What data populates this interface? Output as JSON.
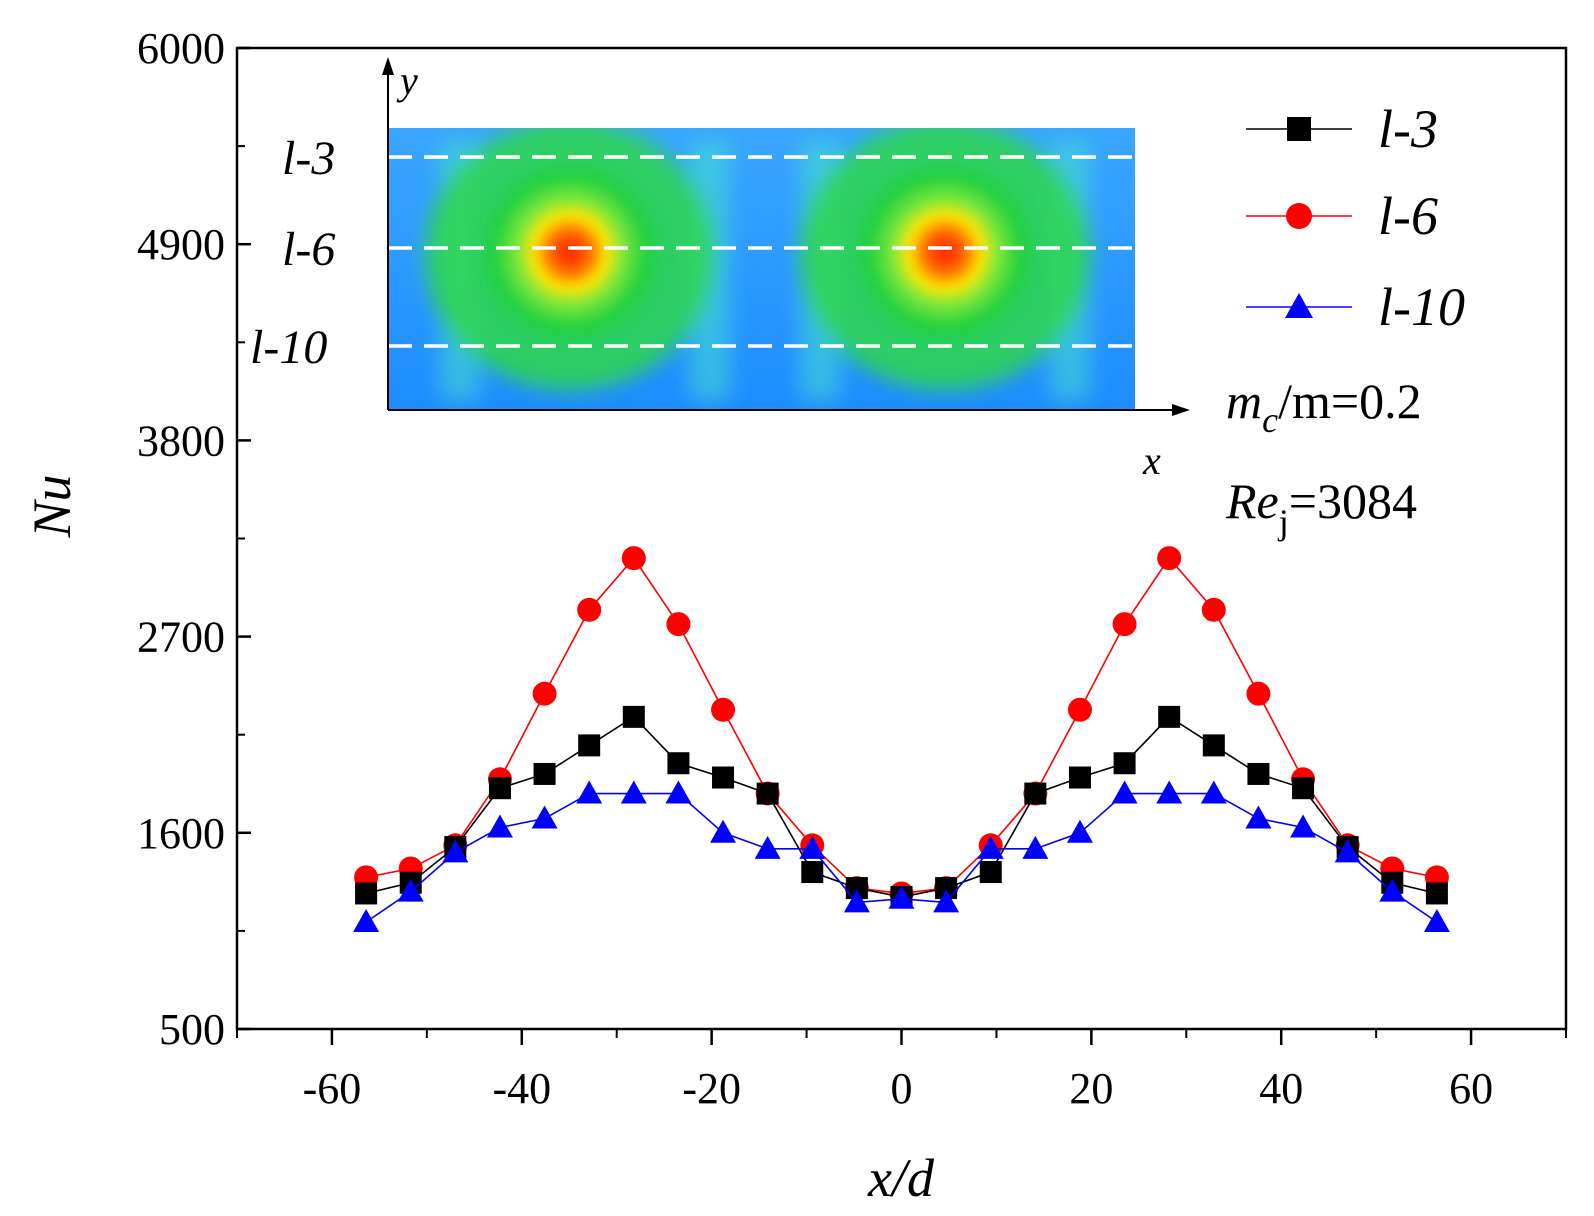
{
  "chart_data": {
    "type": "line",
    "xlabel": "x/d",
    "ylabel": "Nu",
    "xlim": [
      -70,
      70
    ],
    "ylim": [
      500,
      6000
    ],
    "xticks": [
      -60,
      -40,
      -20,
      0,
      20,
      40,
      60
    ],
    "xtick_labels": [
      "-60",
      "-40",
      "-20",
      "0",
      "20",
      "40",
      "60"
    ],
    "yticks": [
      500,
      1600,
      2700,
      3800,
      4900,
      6000
    ],
    "ytick_labels": [
      "500",
      "1600",
      "2700",
      "3800",
      "4900",
      "6000"
    ],
    "x": [
      -56.4,
      -51.7,
      -47,
      -42.3,
      -37.6,
      -32.9,
      -28.2,
      -23.5,
      -18.8,
      -14.1,
      -9.4,
      -4.7,
      0,
      4.7,
      9.4,
      14.1,
      18.8,
      23.5,
      28.2,
      32.9,
      37.6,
      42.3,
      47,
      51.7,
      56.4
    ],
    "series": [
      {
        "name": "l-3",
        "color": "#000000",
        "marker": "square",
        "values": [
          1260,
          1320,
          1520,
          1850,
          1930,
          2090,
          2250,
          1990,
          1910,
          1820,
          1380,
          1290,
          1240,
          1290,
          1380,
          1820,
          1910,
          1990,
          2250,
          2090,
          1930,
          1850,
          1520,
          1320,
          1260
        ]
      },
      {
        "name": "l-6",
        "color": "#ff0000",
        "marker": "circle",
        "values": [
          1350,
          1400,
          1530,
          1900,
          2380,
          2850,
          3140,
          2770,
          2290,
          1820,
          1530,
          1290,
          1260,
          1290,
          1530,
          1820,
          2290,
          2770,
          3140,
          2850,
          2380,
          1900,
          1530,
          1400,
          1350
        ]
      },
      {
        "name": "l-10",
        "color": "#0000ff",
        "marker": "triangle",
        "values": [
          1100,
          1270,
          1490,
          1630,
          1680,
          1820,
          1820,
          1820,
          1600,
          1510,
          1510,
          1210,
          1230,
          1210,
          1510,
          1510,
          1600,
          1820,
          1820,
          1820,
          1680,
          1630,
          1490,
          1270,
          1100
        ]
      }
    ],
    "legend": {
      "position": "top-right",
      "entries": [
        "l-3",
        "l-6",
        "l-10"
      ]
    },
    "annotations": {
      "mass_ratio_pre": "m",
      "mass_ratio_sub": "c",
      "mass_ratio_post": "/m=0.2",
      "reynolds_pre": "Re",
      "reynolds_sub": "j",
      "reynolds_post": "=3084"
    },
    "inset": {
      "description_type": "heatmap",
      "axis_x_label": "x",
      "axis_y_label": "y",
      "line_labels": [
        "l-3",
        "l-6",
        "l-10"
      ]
    }
  },
  "colors": {
    "axis": "#000000",
    "inset_low": "#1e90ff",
    "inset_mid": "#22d622",
    "inset_high": "#ff2200"
  }
}
